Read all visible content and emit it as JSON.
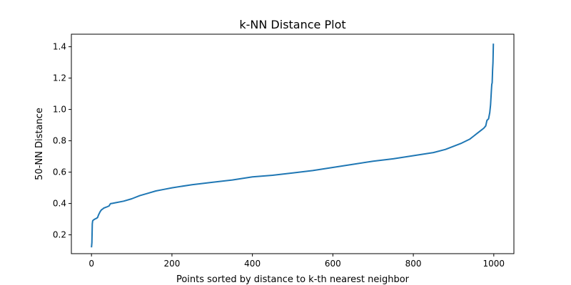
{
  "chart_data": {
    "type": "line",
    "title": "k-NN Distance Plot",
    "xlabel": "Points sorted by distance to k-th nearest neighbor",
    "ylabel": "50-NN Distance",
    "xlim": [
      -50,
      1050
    ],
    "ylim": [
      0.08,
      1.48
    ],
    "xticks": [
      0,
      200,
      400,
      600,
      800,
      1000
    ],
    "yticks": [
      0.2,
      0.4,
      0.6,
      0.8,
      1.0,
      1.2,
      1.4
    ],
    "xtick_labels": [
      "0",
      "200",
      "400",
      "600",
      "800",
      "1000"
    ],
    "ytick_labels": [
      "0.2",
      "0.4",
      "0.6",
      "0.8",
      "1.0",
      "1.2",
      "1.4"
    ],
    "grid": false,
    "series": [
      {
        "color": "#1f77b4",
        "x": [
          0,
          1,
          2,
          3,
          5,
          8,
          12,
          15,
          18,
          20,
          22,
          25,
          28,
          30,
          35,
          40,
          44,
          45,
          46,
          48,
          50,
          60,
          80,
          100,
          120,
          140,
          160,
          180,
          200,
          250,
          300,
          350,
          400,
          450,
          500,
          550,
          600,
          650,
          700,
          750,
          800,
          850,
          880,
          900,
          920,
          940,
          950,
          960,
          970,
          975,
          980,
          983,
          985,
          987,
          990,
          992,
          994,
          995,
          996,
          997,
          998,
          999
        ],
        "y": [
          0.12,
          0.15,
          0.27,
          0.29,
          0.295,
          0.3,
          0.305,
          0.31,
          0.33,
          0.34,
          0.35,
          0.36,
          0.365,
          0.37,
          0.375,
          0.38,
          0.385,
          0.39,
          0.395,
          0.4,
          0.4,
          0.405,
          0.415,
          0.43,
          0.45,
          0.465,
          0.48,
          0.49,
          0.5,
          0.52,
          0.535,
          0.55,
          0.57,
          0.58,
          0.595,
          0.61,
          0.63,
          0.65,
          0.67,
          0.685,
          0.705,
          0.725,
          0.745,
          0.765,
          0.785,
          0.81,
          0.83,
          0.85,
          0.87,
          0.88,
          0.895,
          0.93,
          0.935,
          0.94,
          0.98,
          1.03,
          1.12,
          1.16,
          1.17,
          1.25,
          1.3,
          1.42
        ]
      }
    ]
  }
}
